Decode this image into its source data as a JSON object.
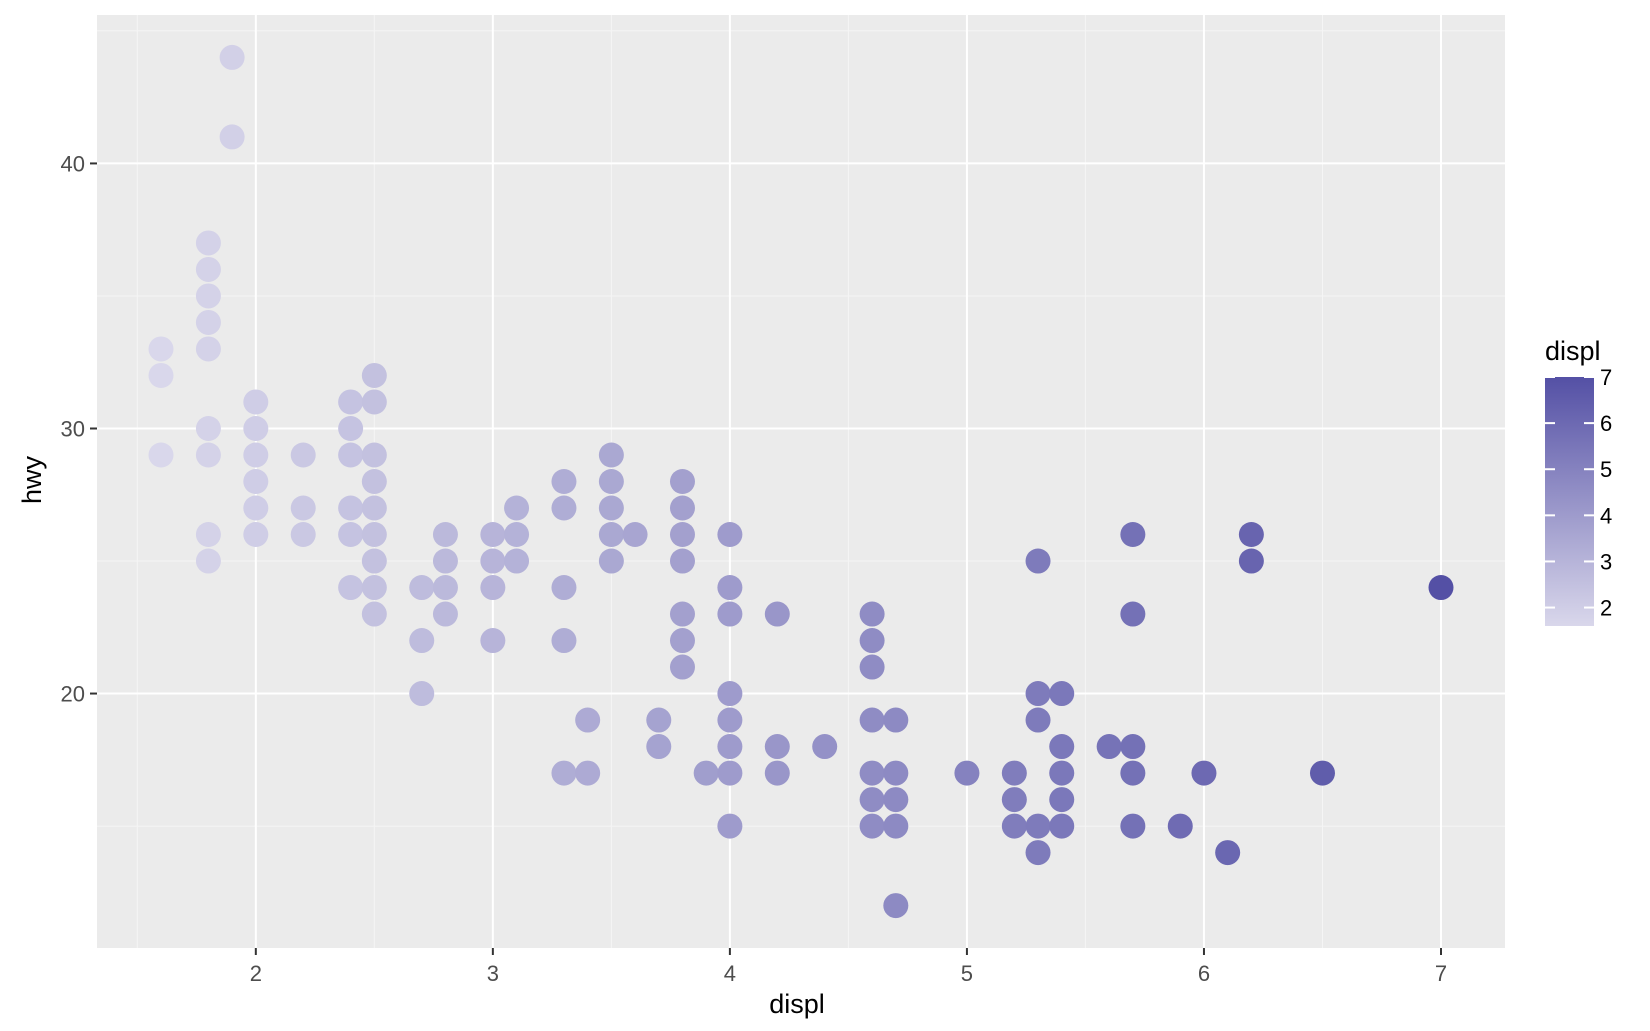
{
  "chart_data": {
    "type": "scatter",
    "title": "",
    "xlabel": "displ",
    "ylabel": "hwy",
    "xlim": [
      1.33,
      7.27
    ],
    "ylim": [
      10.4,
      45.6
    ],
    "xticks": [
      2,
      3,
      4,
      5,
      6,
      7
    ],
    "yticks": [
      20,
      30,
      40
    ],
    "grid": true,
    "legend": {
      "title": "displ",
      "position": "right",
      "type": "colorbar",
      "labels": [
        2,
        3,
        4,
        5,
        6,
        7
      ],
      "range": [
        1.6,
        7.0
      ],
      "color_low": "#d9d7eb",
      "color_high": "#5450a5"
    },
    "colors": {
      "panel_background": "#ebebeb",
      "grid_major": "#ffffff",
      "grid_minor": "#f5f5f5",
      "tick_text": "#4d4d4d",
      "tick_mark": "#333333"
    },
    "points": [
      {
        "x": 1.6,
        "y": 33
      },
      {
        "x": 1.6,
        "y": 32
      },
      {
        "x": 1.6,
        "y": 29
      },
      {
        "x": 1.8,
        "y": 37
      },
      {
        "x": 1.8,
        "y": 36
      },
      {
        "x": 1.8,
        "y": 35
      },
      {
        "x": 1.8,
        "y": 34
      },
      {
        "x": 1.8,
        "y": 33
      },
      {
        "x": 1.8,
        "y": 30
      },
      {
        "x": 1.8,
        "y": 29
      },
      {
        "x": 1.8,
        "y": 26
      },
      {
        "x": 1.8,
        "y": 25
      },
      {
        "x": 1.9,
        "y": 44
      },
      {
        "x": 1.9,
        "y": 41
      },
      {
        "x": 2.0,
        "y": 31
      },
      {
        "x": 2.0,
        "y": 30
      },
      {
        "x": 2.0,
        "y": 29
      },
      {
        "x": 2.0,
        "y": 28
      },
      {
        "x": 2.0,
        "y": 27
      },
      {
        "x": 2.0,
        "y": 26
      },
      {
        "x": 2.2,
        "y": 29
      },
      {
        "x": 2.2,
        "y": 27
      },
      {
        "x": 2.2,
        "y": 26
      },
      {
        "x": 2.4,
        "y": 31
      },
      {
        "x": 2.4,
        "y": 30
      },
      {
        "x": 2.4,
        "y": 29
      },
      {
        "x": 2.4,
        "y": 27
      },
      {
        "x": 2.4,
        "y": 26
      },
      {
        "x": 2.4,
        "y": 24
      },
      {
        "x": 2.5,
        "y": 32
      },
      {
        "x": 2.5,
        "y": 31
      },
      {
        "x": 2.5,
        "y": 29
      },
      {
        "x": 2.5,
        "y": 28
      },
      {
        "x": 2.5,
        "y": 27
      },
      {
        "x": 2.5,
        "y": 26
      },
      {
        "x": 2.5,
        "y": 25
      },
      {
        "x": 2.5,
        "y": 24
      },
      {
        "x": 2.5,
        "y": 23
      },
      {
        "x": 2.7,
        "y": 24
      },
      {
        "x": 2.7,
        "y": 22
      },
      {
        "x": 2.7,
        "y": 20
      },
      {
        "x": 2.8,
        "y": 26
      },
      {
        "x": 2.8,
        "y": 25
      },
      {
        "x": 2.8,
        "y": 24
      },
      {
        "x": 2.8,
        "y": 23
      },
      {
        "x": 3.0,
        "y": 26
      },
      {
        "x": 3.0,
        "y": 25
      },
      {
        "x": 3.0,
        "y": 24
      },
      {
        "x": 3.0,
        "y": 22
      },
      {
        "x": 3.1,
        "y": 27
      },
      {
        "x": 3.1,
        "y": 26
      },
      {
        "x": 3.1,
        "y": 25
      },
      {
        "x": 3.3,
        "y": 28
      },
      {
        "x": 3.3,
        "y": 27
      },
      {
        "x": 3.3,
        "y": 24
      },
      {
        "x": 3.3,
        "y": 22
      },
      {
        "x": 3.3,
        "y": 17
      },
      {
        "x": 3.4,
        "y": 19
      },
      {
        "x": 3.4,
        "y": 17
      },
      {
        "x": 3.5,
        "y": 29
      },
      {
        "x": 3.5,
        "y": 28
      },
      {
        "x": 3.5,
        "y": 27
      },
      {
        "x": 3.5,
        "y": 26
      },
      {
        "x": 3.5,
        "y": 25
      },
      {
        "x": 3.6,
        "y": 26
      },
      {
        "x": 3.7,
        "y": 19
      },
      {
        "x": 3.7,
        "y": 18
      },
      {
        "x": 3.8,
        "y": 28
      },
      {
        "x": 3.8,
        "y": 27
      },
      {
        "x": 3.8,
        "y": 26
      },
      {
        "x": 3.8,
        "y": 25
      },
      {
        "x": 3.8,
        "y": 23
      },
      {
        "x": 3.8,
        "y": 22
      },
      {
        "x": 3.8,
        "y": 21
      },
      {
        "x": 3.9,
        "y": 17
      },
      {
        "x": 4.0,
        "y": 26
      },
      {
        "x": 4.0,
        "y": 24
      },
      {
        "x": 4.0,
        "y": 23
      },
      {
        "x": 4.0,
        "y": 20
      },
      {
        "x": 4.0,
        "y": 19
      },
      {
        "x": 4.0,
        "y": 18
      },
      {
        "x": 4.0,
        "y": 17
      },
      {
        "x": 4.0,
        "y": 15
      },
      {
        "x": 4.2,
        "y": 23
      },
      {
        "x": 4.2,
        "y": 18
      },
      {
        "x": 4.2,
        "y": 17
      },
      {
        "x": 4.4,
        "y": 18
      },
      {
        "x": 4.6,
        "y": 23
      },
      {
        "x": 4.6,
        "y": 22
      },
      {
        "x": 4.6,
        "y": 21
      },
      {
        "x": 4.6,
        "y": 19
      },
      {
        "x": 4.6,
        "y": 17
      },
      {
        "x": 4.6,
        "y": 16
      },
      {
        "x": 4.6,
        "y": 15
      },
      {
        "x": 4.7,
        "y": 19
      },
      {
        "x": 4.7,
        "y": 17
      },
      {
        "x": 4.7,
        "y": 16
      },
      {
        "x": 4.7,
        "y": 15
      },
      {
        "x": 4.7,
        "y": 12
      },
      {
        "x": 5.0,
        "y": 17
      },
      {
        "x": 5.2,
        "y": 17
      },
      {
        "x": 5.2,
        "y": 16
      },
      {
        "x": 5.2,
        "y": 15
      },
      {
        "x": 5.3,
        "y": 25
      },
      {
        "x": 5.3,
        "y": 20
      },
      {
        "x": 5.3,
        "y": 19
      },
      {
        "x": 5.3,
        "y": 15
      },
      {
        "x": 5.3,
        "y": 14
      },
      {
        "x": 5.4,
        "y": 20
      },
      {
        "x": 5.4,
        "y": 18
      },
      {
        "x": 5.4,
        "y": 17
      },
      {
        "x": 5.4,
        "y": 16
      },
      {
        "x": 5.4,
        "y": 15
      },
      {
        "x": 5.6,
        "y": 18
      },
      {
        "x": 5.7,
        "y": 26
      },
      {
        "x": 5.7,
        "y": 23
      },
      {
        "x": 5.7,
        "y": 18
      },
      {
        "x": 5.7,
        "y": 17
      },
      {
        "x": 5.7,
        "y": 15
      },
      {
        "x": 5.9,
        "y": 15
      },
      {
        "x": 6.0,
        "y": 17
      },
      {
        "x": 6.1,
        "y": 14
      },
      {
        "x": 6.2,
        "y": 26
      },
      {
        "x": 6.2,
        "y": 25
      },
      {
        "x": 6.5,
        "y": 17
      },
      {
        "x": 7.0,
        "y": 24
      }
    ]
  }
}
